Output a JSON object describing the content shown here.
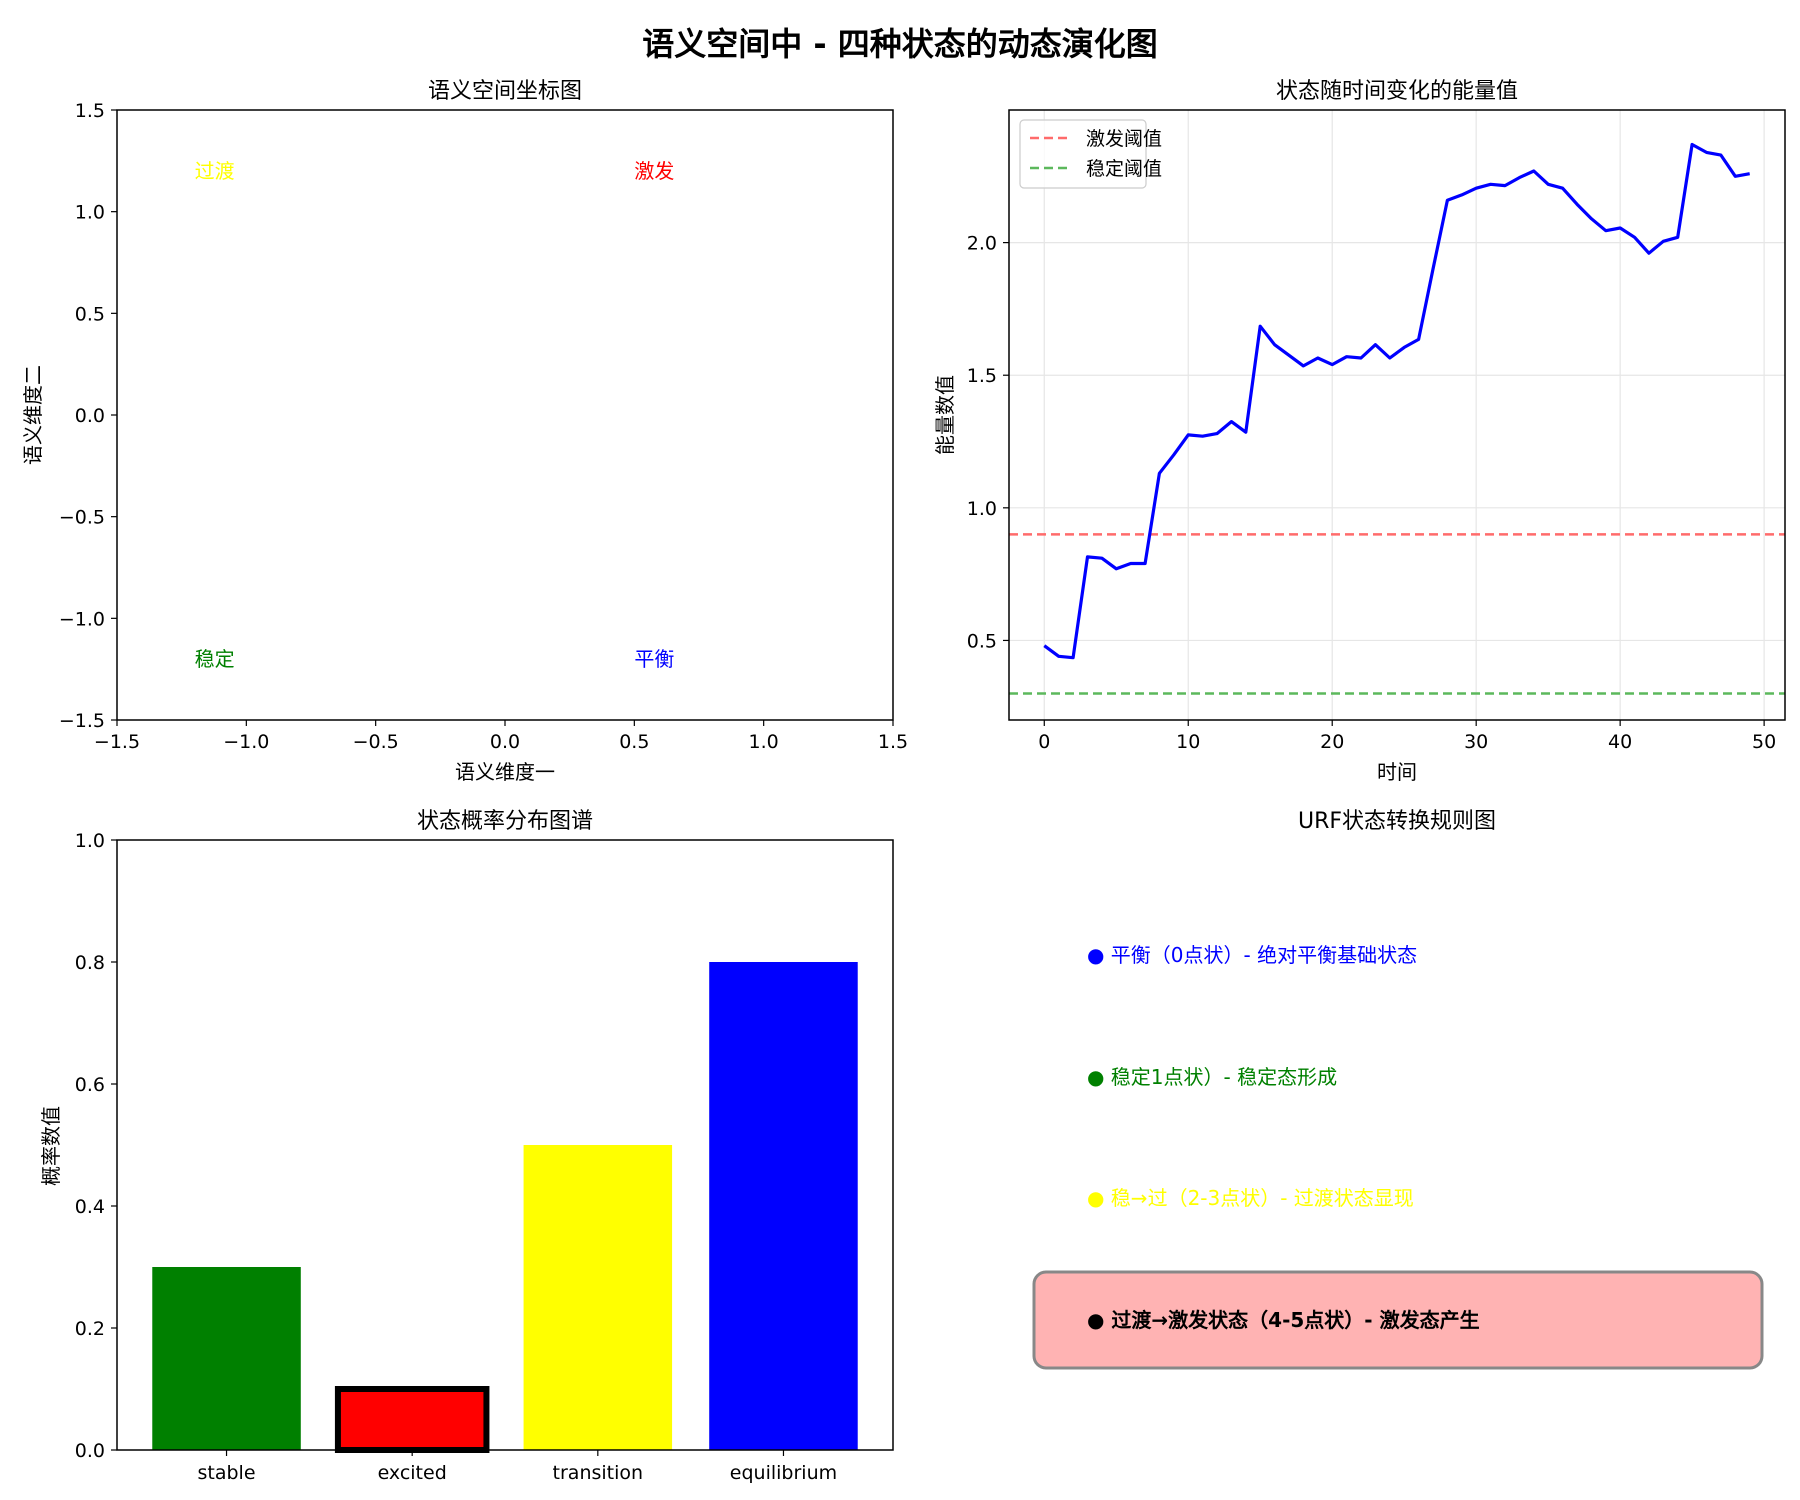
{
  "figure": {
    "title": "语义空间中 - 四种状态的动态演化图"
  },
  "chart_data": [
    {
      "type": "scatter",
      "title": "语义空间坐标图",
      "xlabel": "语义维度一",
      "ylabel": "语义维度二",
      "xlim": [
        -1.5,
        1.5
      ],
      "ylim": [
        -1.5,
        1.5
      ],
      "xticks": [
        -1.5,
        -1.0,
        -0.5,
        0.0,
        0.5,
        1.0,
        1.5
      ],
      "yticks": [
        -1.5,
        -1.0,
        -0.5,
        0.0,
        0.5,
        1.0,
        1.5
      ],
      "grid": false,
      "annotations": [
        {
          "text": "过渡",
          "x": -1.2,
          "y": 1.2,
          "color": "#ffff00"
        },
        {
          "text": "激发",
          "x": 0.5,
          "y": 1.2,
          "color": "#ff0000"
        },
        {
          "text": "稳定",
          "x": -1.2,
          "y": -1.2,
          "color": "#008000"
        },
        {
          "text": "平衡",
          "x": 0.5,
          "y": -1.2,
          "color": "#0000ff"
        }
      ]
    },
    {
      "type": "line",
      "title": "状态随时间变化的能量值",
      "xlabel": "时间",
      "ylabel": "能量数值",
      "xlim": [
        -2.45,
        51.45
      ],
      "ylim": [
        0.2,
        2.5
      ],
      "xticks": [
        0,
        10,
        20,
        30,
        40,
        50
      ],
      "yticks": [
        0.5,
        1.0,
        1.5,
        2.0
      ],
      "grid": true,
      "legend_position": "top-left",
      "series": [
        {
          "color": "#0000ff",
          "x": [
            0,
            1,
            2,
            3,
            4,
            5,
            6,
            7,
            8,
            9,
            10,
            11,
            12,
            13,
            14,
            15,
            16,
            17,
            18,
            19,
            20,
            21,
            22,
            23,
            24,
            25,
            26,
            27,
            28,
            29,
            30,
            31,
            32,
            33,
            34,
            35,
            36,
            37,
            38,
            39,
            40,
            41,
            42,
            43,
            44,
            45,
            46,
            47,
            48,
            49
          ],
          "y": [
            0.48,
            0.44,
            0.435,
            0.815,
            0.81,
            0.77,
            0.79,
            0.79,
            1.13,
            1.2,
            1.275,
            1.27,
            1.28,
            1.325,
            1.285,
            1.685,
            1.615,
            1.575,
            1.535,
            1.565,
            1.54,
            1.57,
            1.565,
            1.615,
            1.565,
            1.605,
            1.635,
            1.9,
            2.16,
            2.18,
            2.205,
            2.22,
            2.215,
            2.245,
            2.27,
            2.22,
            2.205,
            2.145,
            2.09,
            2.045,
            2.055,
            2.02,
            1.96,
            2.005,
            2.02,
            2.37,
            2.34,
            2.33,
            2.25,
            2.26
          ]
        }
      ],
      "reference_lines": [
        {
          "name": "激发阈值",
          "y": 0.9,
          "color": "#ff6b6b",
          "style": "dashed"
        },
        {
          "name": "稳定阈值",
          "y": 0.3,
          "color": "#5cb85c",
          "style": "dashed"
        }
      ]
    },
    {
      "type": "bar",
      "title": "状态概率分布图谱",
      "xlabel": "",
      "ylabel": "概率数值",
      "ylim": [
        0,
        1.0
      ],
      "yticks": [
        0.0,
        0.2,
        0.4,
        0.6,
        0.8,
        1.0
      ],
      "categories": [
        "stable",
        "excited",
        "transition",
        "equilibrium"
      ],
      "values": [
        0.3,
        0.1,
        0.5,
        0.8
      ],
      "colors": [
        "#008000",
        "#ff0000",
        "#ffff00",
        "#0000ff"
      ],
      "highlighted": "excited"
    },
    {
      "type": "table",
      "title": "URF状态转换规则图",
      "rules": [
        {
          "text": "● 平衡（0点状）- 绝对平衡基础状态",
          "color": "#0000ff",
          "bold": false,
          "highlighted": false
        },
        {
          "text": "● 稳定1点状）- 稳定态形成",
          "color": "#008000",
          "bold": false,
          "highlighted": false
        },
        {
          "text": "● 稳→过（2-3点状）- 过渡状态显现",
          "color": "#ffff00",
          "bold": false,
          "highlighted": false
        },
        {
          "text": "● 过渡→激发状态（4-5点状）- 激发态产生",
          "color": "#000000",
          "bold": true,
          "highlighted": true,
          "highlight_color": "#ffb3b3"
        }
      ]
    }
  ]
}
